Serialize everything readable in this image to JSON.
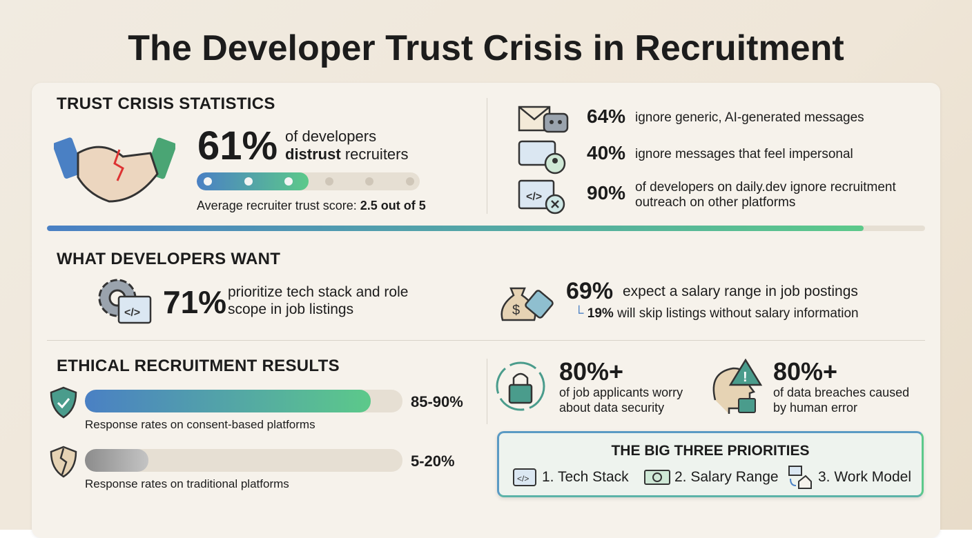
{
  "title": "The Developer Trust Crisis in Recruitment",
  "trust": {
    "heading": "TRUST CRISIS STATISTICS",
    "headline": "61%",
    "line1": "of developers",
    "bold": "distrust",
    "line2": "recruiters",
    "score_caption": "Average recruiter trust score:",
    "score_label": "2.5 out of 5",
    "score": 2.5,
    "score_max": 5,
    "stats": [
      {
        "value": "64%",
        "text": "ignore generic, AI-generated messages"
      },
      {
        "value": "40%",
        "text": "ignore messages that feel impersonal"
      },
      {
        "value": "90%",
        "text": "of developers on daily.dev ignore recruitment outreach on other platforms"
      }
    ]
  },
  "wants": {
    "heading": "WHAT DEVELOPERS WANT",
    "items": [
      {
        "value": "71%",
        "text": "prioritize tech stack and role scope in job listings"
      },
      {
        "value": "69%",
        "text": "expect a salary range in job postings",
        "sub_value": "19%",
        "sub_text": "will skip listings without salary information"
      }
    ]
  },
  "ethical": {
    "heading": "ETHICAL RECRUITMENT RESULTS",
    "bars": [
      {
        "label": "85-90%",
        "low": 85,
        "high": 90,
        "caption": "Response rates on consent-based platforms"
      },
      {
        "label": "5-20%",
        "low": 5,
        "high": 20,
        "caption": "Response rates on traditional platforms"
      }
    ],
    "security": [
      {
        "value": "80%+",
        "text": "of job applicants worry about data security"
      },
      {
        "value": "80%+",
        "text": "of data breaches caused by human error"
      }
    ],
    "priorities": {
      "heading": "THE BIG THREE PRIORITIES",
      "items": [
        "1. Tech Stack",
        "2. Salary Range",
        "3. Work Model"
      ]
    }
  }
}
